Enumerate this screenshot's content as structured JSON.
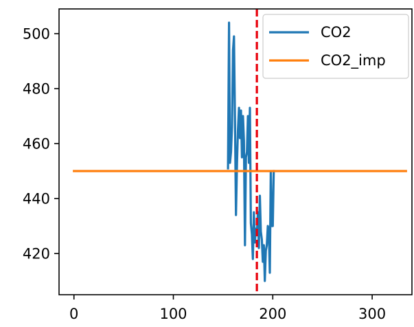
{
  "chart_data": {
    "type": "line",
    "title": "",
    "xlabel": "",
    "ylabel": "",
    "xlim": [
      -15,
      340
    ],
    "ylim": [
      405,
      509
    ],
    "xticks": [
      0,
      100,
      200,
      300
    ],
    "yticks": [
      420,
      440,
      460,
      480,
      500
    ],
    "grid": false,
    "legend_position": "top-right",
    "vline": {
      "x": 184,
      "color": "#e8000b",
      "style": "dashed"
    },
    "series": [
      {
        "name": "CO2",
        "color": "#1f77b4",
        "x": [
          155,
          156,
          157,
          158,
          159,
          160,
          161,
          162,
          163,
          164,
          165,
          166,
          167,
          168,
          169,
          170,
          171,
          172,
          173,
          174,
          175,
          176,
          177,
          178,
          179,
          180,
          181,
          182,
          183,
          184,
          185,
          186,
          187,
          188,
          189,
          190,
          191,
          192,
          193,
          194,
          195,
          196,
          197,
          198,
          199,
          200,
          201
        ],
        "y": [
          451,
          504,
          453,
          457,
          466,
          494,
          499,
          467,
          434,
          453,
          465,
          473,
          462,
          472,
          455,
          470,
          461,
          423,
          455,
          457,
          470,
          453,
          473,
          431,
          427,
          418,
          435,
          424,
          429,
          427,
          435,
          422,
          441,
          428,
          425,
          417,
          423,
          410,
          421,
          423,
          430,
          429,
          413,
          450,
          430,
          430,
          450
        ]
      },
      {
        "name": "CO2_imp",
        "color": "#ff7f0e",
        "x": [
          0,
          334
        ],
        "y": [
          450,
          450
        ]
      }
    ]
  }
}
